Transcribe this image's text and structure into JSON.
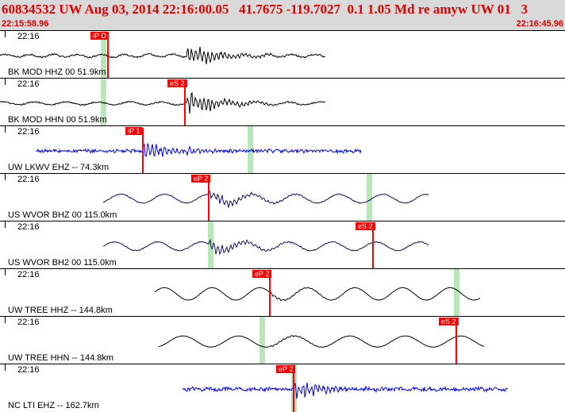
{
  "header": {
    "title": "60834532 UW Aug 03, 2014 22:16:00.05   41.7675 -119.7027  0.1 1.05 Md re amyw UW 01   3",
    "start_time": "22:15:58.96",
    "end_time": "22:16:45.96"
  },
  "colors": {
    "header_bg": "#d9d9d9",
    "header_text": "#e00000",
    "trace_black": "#000000",
    "trace_blue": "#0000ff",
    "trace_navy": "#1a0a66",
    "pick_red": "#ff0000",
    "window_green": "#b8e6b8"
  },
  "traces": [
    {
      "time_label": "22:16",
      "station": "BK MOD HHZ 00 51.9km",
      "color": "black",
      "pick": "iP D",
      "pick_sec": 13.6,
      "green_sec": 13.0,
      "start_sec": 0,
      "end_sec": 41,
      "amp": 0.55,
      "burst_sec": 23.5,
      "noise": 0.15,
      "period": 3.0,
      "tone": "mixed"
    },
    {
      "time_label": "22:16",
      "station": "BK MOD HHN 00 51.9km",
      "color": "black",
      "pick": "eS 2",
      "pick_sec": 23.3,
      "green_sec": 13.0,
      "start_sec": 0,
      "end_sec": 41,
      "amp": 0.6,
      "burst_sec": 23.5,
      "noise": 0.1,
      "period": 4.0,
      "tone": "mixed"
    },
    {
      "time_label": "22:16",
      "station": "UW LKWV EHZ -- 74.3km",
      "color": "blue",
      "pick": "iP 1",
      "pick_sec": 18.0,
      "green_sec": 31.5,
      "start_sec": 4.5,
      "end_sec": 45.5,
      "amp": 0.45,
      "burst_sec": 18.0,
      "noise": 0.35,
      "period": 1.0,
      "tone": "noise"
    },
    {
      "time_label": "22:16",
      "station": "US WVOR BHZ 00 115.0km",
      "color": "navy",
      "pick": "eP 2",
      "pick_sec": 26.3,
      "green_sec": 46.5,
      "start_sec": 13,
      "end_sec": 54,
      "amp": 0.35,
      "burst_sec": 26.3,
      "noise": 0.12,
      "period": 5.5,
      "tone": "wavy"
    },
    {
      "time_label": "22:16",
      "station": "US WVOR BH2 00 115.0km",
      "color": "navy",
      "pick": "eS 2",
      "pick_sec": 47.0,
      "green_sec": 26.5,
      "start_sec": 13,
      "end_sec": 54,
      "amp": 0.35,
      "burst_sec": 26.3,
      "noise": 0.12,
      "period": 5.5,
      "tone": "wavy"
    },
    {
      "time_label": "22:16",
      "station": "UW TREE HHZ -- 144.8km",
      "color": "black",
      "pick": "eP 2",
      "pick_sec": 34.0,
      "green_sec": 57.5,
      "start_sec": 19.5,
      "end_sec": 60.5,
      "amp": 0.5,
      "burst_sec": 34.0,
      "noise": 0.02,
      "period": 6.0,
      "tone": "smooth"
    },
    {
      "time_label": "22:16",
      "station": "UW TREE HHN -- 144.8km",
      "color": "black",
      "pick": "eS 2",
      "pick_sec": 57.5,
      "green_sec": 33.0,
      "start_sec": 20,
      "end_sec": 61,
      "amp": 0.45,
      "burst_sec": 34.0,
      "noise": 0.02,
      "period": 7.0,
      "tone": "smooth"
    },
    {
      "time_label": "22:16",
      "station": "NC LTI EHZ -- 162.7km",
      "color": "blue",
      "pick": "eP 2",
      "pick_sec": 37.0,
      "green_sec": 37.0,
      "start_sec": 23,
      "end_sec": 64,
      "amp": 0.45,
      "burst_sec": 37.0,
      "noise": 0.4,
      "period": 2.0,
      "tone": "noise"
    }
  ]
}
